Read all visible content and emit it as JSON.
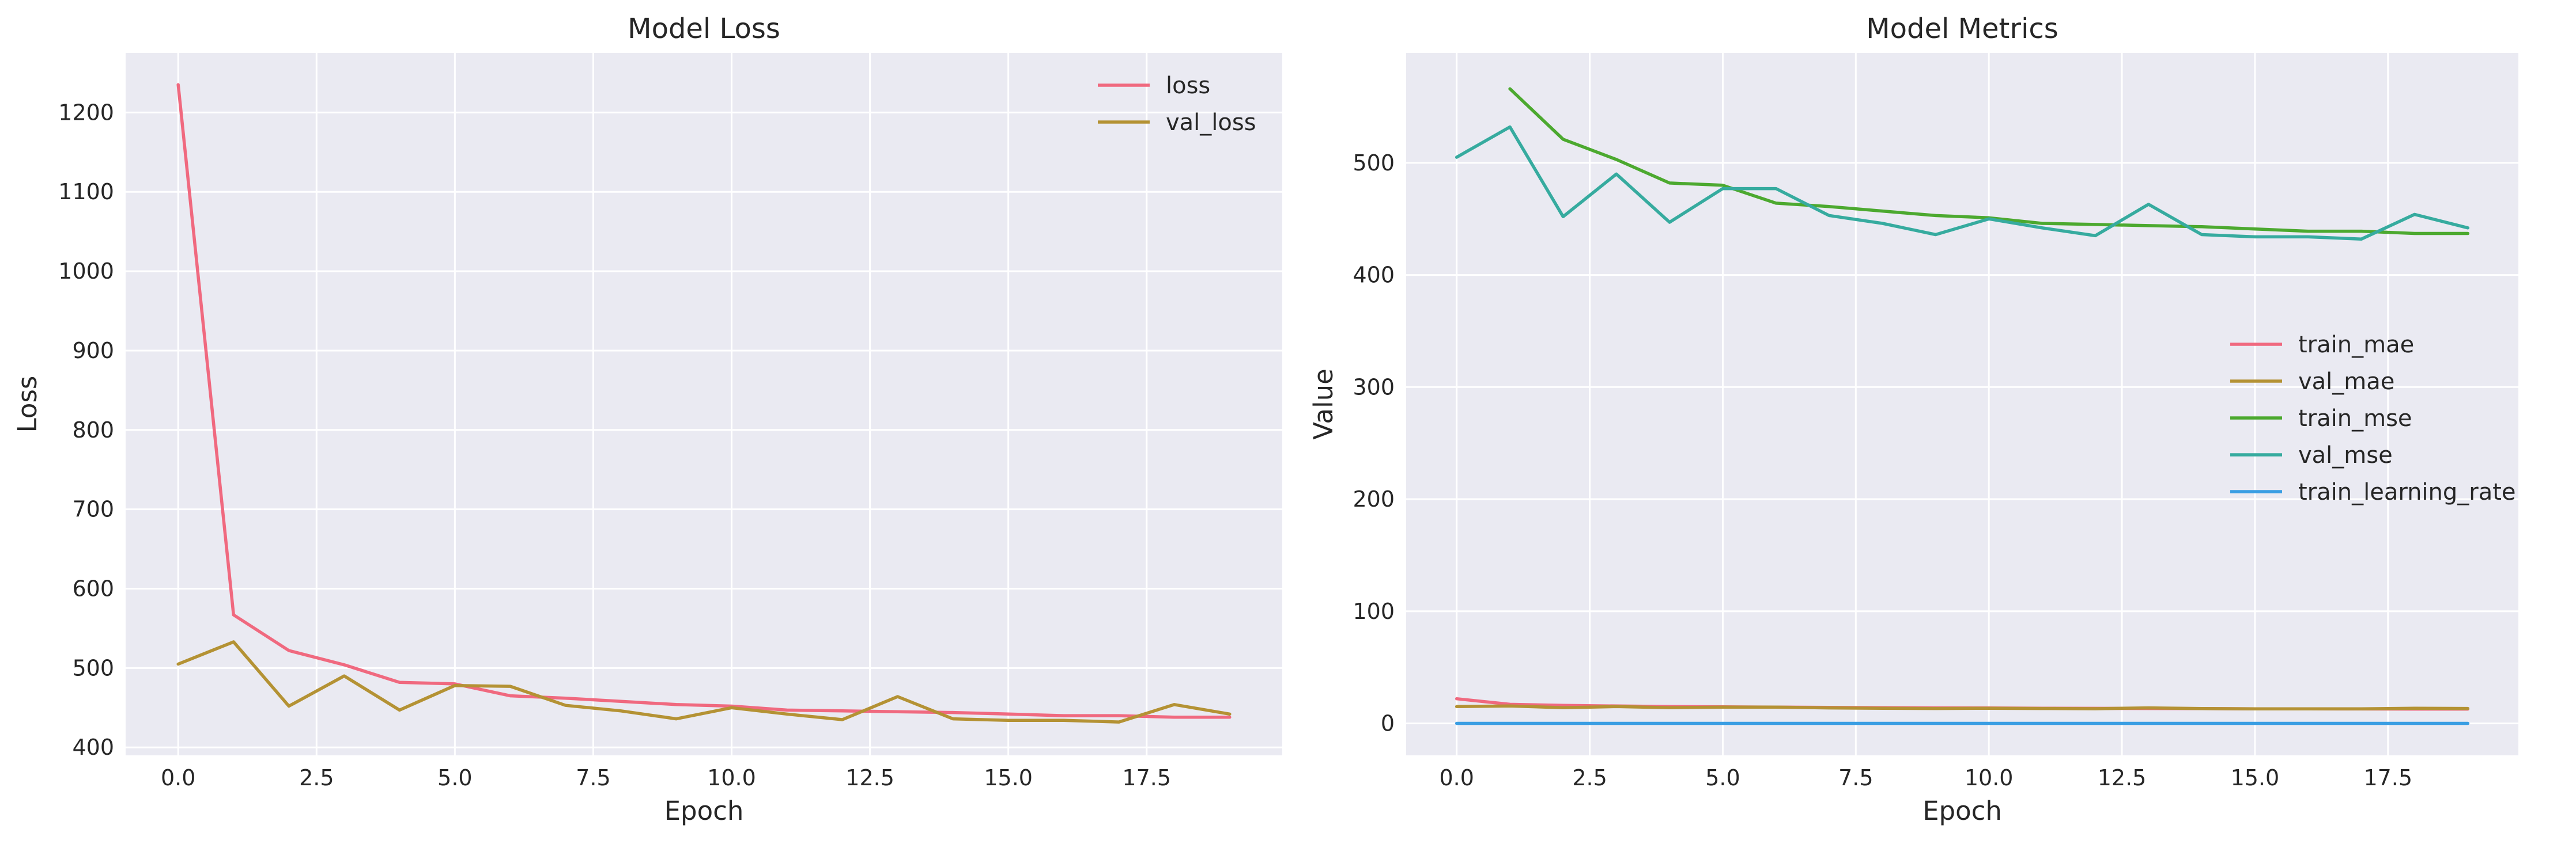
{
  "colors": {
    "axes_bg": "#eaeaf2",
    "grid": "#ffffff",
    "text": "#262626"
  },
  "chart_data": [
    {
      "type": "line",
      "title": "Model Loss",
      "xlabel": "Epoch",
      "ylabel": "Loss",
      "xlim": [
        -0.95,
        19.95
      ],
      "ylim": [
        390,
        1275
      ],
      "xticks": [
        0,
        2.5,
        5,
        7.5,
        10,
        12.5,
        15,
        17.5
      ],
      "xtick_labels": [
        "0.0",
        "2.5",
        "5.0",
        "7.5",
        "10.0",
        "12.5",
        "15.0",
        "17.5"
      ],
      "yticks": [
        400,
        500,
        600,
        700,
        800,
        900,
        1000,
        1100,
        1200
      ],
      "ytick_labels": [
        "400",
        "500",
        "600",
        "700",
        "800",
        "900",
        "1000",
        "1100",
        "1200"
      ],
      "grid": true,
      "legend_position": "top-right",
      "x": [
        0,
        1,
        2,
        3,
        4,
        5,
        6,
        7,
        8,
        9,
        10,
        11,
        12,
        13,
        14,
        15,
        16,
        17,
        18,
        19
      ],
      "series": [
        {
          "name": "loss",
          "color": "#f0697f",
          "values": [
            1235,
            567,
            522,
            504,
            482,
            480,
            465,
            462,
            458,
            454,
            452,
            447,
            446,
            445,
            444,
            442,
            440,
            440,
            438,
            438
          ]
        },
        {
          "name": "val_loss",
          "color": "#b49234",
          "values": [
            505,
            533,
            452,
            490,
            447,
            478,
            477,
            453,
            446,
            436,
            450,
            442,
            435,
            464,
            436,
            434,
            434,
            432,
            454,
            442
          ]
        }
      ]
    },
    {
      "type": "line",
      "title": "Model Metrics",
      "xlabel": "Epoch",
      "ylabel": "Value",
      "xlim": [
        -0.95,
        19.95
      ],
      "ylim": [
        -28.5,
        598
      ],
      "xticks": [
        0,
        2.5,
        5,
        7.5,
        10,
        12.5,
        15,
        17.5
      ],
      "xtick_labels": [
        "0.0",
        "2.5",
        "5.0",
        "7.5",
        "10.0",
        "12.5",
        "15.0",
        "17.5"
      ],
      "yticks": [
        0,
        100,
        200,
        300,
        400,
        500
      ],
      "ytick_labels": [
        "0",
        "100",
        "200",
        "300",
        "400",
        "500"
      ],
      "grid": true,
      "legend_position": "center-right",
      "x": [
        0,
        1,
        2,
        3,
        4,
        5,
        6,
        7,
        8,
        9,
        10,
        11,
        12,
        13,
        14,
        15,
        16,
        17,
        18,
        19
      ],
      "series": [
        {
          "name": "train_mae",
          "color": "#f0697f",
          "values": [
            22,
            17,
            16,
            15.5,
            15,
            14.8,
            14.5,
            14.2,
            14,
            13.8,
            13.7,
            13.5,
            13.4,
            13.3,
            13.2,
            13,
            13,
            12.9,
            12.8,
            12.8
          ]
        },
        {
          "name": "val_mae",
          "color": "#b49234",
          "values": [
            15,
            15.5,
            14,
            15,
            14,
            14.5,
            14.5,
            13.8,
            13.5,
            13.3,
            13.5,
            13.3,
            13.1,
            13.8,
            13.2,
            13,
            13,
            13,
            13.5,
            13.3
          ]
        },
        {
          "name": "train_mse",
          "color": "#4ca92f",
          "values": [
            null,
            566,
            521,
            503,
            482,
            480,
            464,
            461,
            457,
            453,
            451,
            446,
            445,
            444,
            443,
            441,
            439,
            439,
            437,
            437
          ]
        },
        {
          "name": "val_mse",
          "color": "#36ab9f",
          "values": [
            505,
            532,
            452,
            490,
            447,
            477,
            477,
            453,
            446,
            436,
            450,
            442,
            435,
            463,
            436,
            434,
            434,
            432,
            454,
            442
          ]
        },
        {
          "name": "train_learning_rate",
          "color": "#3a9ee3",
          "values": [
            0.001,
            0.001,
            0.001,
            0.001,
            0.001,
            0.001,
            0.001,
            0.001,
            0.001,
            0.001,
            0.001,
            0.001,
            0.001,
            0.001,
            0.001,
            0.001,
            0.001,
            0.001,
            0.001,
            0.001
          ]
        }
      ]
    }
  ]
}
